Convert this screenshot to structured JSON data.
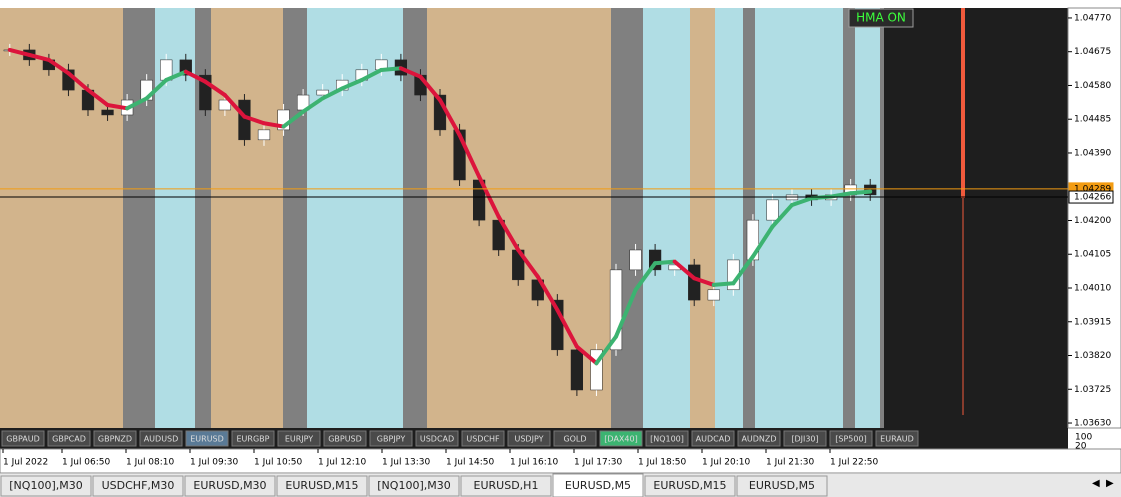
{
  "chart": {
    "indicator": "HMA ON",
    "price_axis": {
      "range": [
        1.03616,
        1.04798
      ],
      "ticks": [
        {
          "value": 1.0477,
          "label": "1.04770"
        },
        {
          "value": 1.04675,
          "label": "1.04675"
        },
        {
          "value": 1.0458,
          "label": "1.04580"
        },
        {
          "value": 1.04485,
          "label": "1.04485"
        },
        {
          "value": 1.0439,
          "label": "1.04390"
        },
        {
          "value": 1.042,
          "label": "1.04200"
        },
        {
          "value": 1.04105,
          "label": "1.04105"
        },
        {
          "value": 1.0401,
          "label": "1.04010"
        },
        {
          "value": 1.03915,
          "label": "1.03915"
        },
        {
          "value": 1.0382,
          "label": "1.03820"
        },
        {
          "value": 1.03725,
          "label": "1.03725"
        },
        {
          "value": 1.0363,
          "label": "1.03630"
        }
      ]
    },
    "bid_line": {
      "value": 1.04289,
      "label": "1.04289"
    },
    "ask_line": {
      "value": 1.04266,
      "label": "1.04266"
    },
    "prices": [
      1.0468,
      1.04652,
      1.04624,
      1.04567,
      1.04511,
      1.04497,
      1.04539,
      1.04595,
      1.04652,
      1.04609,
      1.04511,
      1.04539,
      1.04427,
      1.04455,
      1.04511,
      1.04553,
      1.04567,
      1.04595,
      1.04624,
      1.04652,
      1.04609,
      1.04553,
      1.04455,
      1.04314,
      1.04201,
      1.04117,
      1.04033,
      1.03976,
      1.03836,
      1.03723,
      1.03836,
      1.04061,
      1.04117,
      1.04061,
      1.04075,
      1.03976,
      1.04005,
      1.04089,
      1.04201,
      1.04258,
      1.04272,
      1.04258,
      1.04272,
      1.043,
      1.04272
    ]
  },
  "symbols": [
    "GBPAUD",
    "GBPCAD",
    "GBPNZD",
    "AUDUSD",
    "EURUSD",
    "EURGBP",
    "EURJPY",
    "GBPUSD",
    "GBPJPY",
    "USDCAD",
    "USDCHF",
    "USDJPY",
    "GOLD",
    "[DAX40]",
    "[NQ100]",
    "AUDCAD",
    "AUDNZD",
    "[DJI30]",
    "[SP500]",
    "EURAUD"
  ],
  "scale": [
    "100",
    "20"
  ],
  "time_labels": [
    "1 Jul 2022",
    "1 Jul 06:50",
    "1 Jul 08:10",
    "1 Jul 09:30",
    "1 Jul 10:50",
    "1 Jul 12:10",
    "1 Jul 13:30",
    "1 Jul 14:50",
    "1 Jul 16:10",
    "1 Jul 17:30",
    "1 Jul 18:50",
    "1 Jul 20:10",
    "1 Jul 21:30",
    "1 Jul 22:50"
  ],
  "tabs": [
    "[NQ100],M30",
    "USDCHF,M30",
    "EURUSD,M30",
    "EURUSD,M15",
    "[NQ100],M30",
    "EURUSD,H1",
    "EURUSD,M5",
    "EURUSD,M15",
    "EURUSD,M5"
  ]
}
